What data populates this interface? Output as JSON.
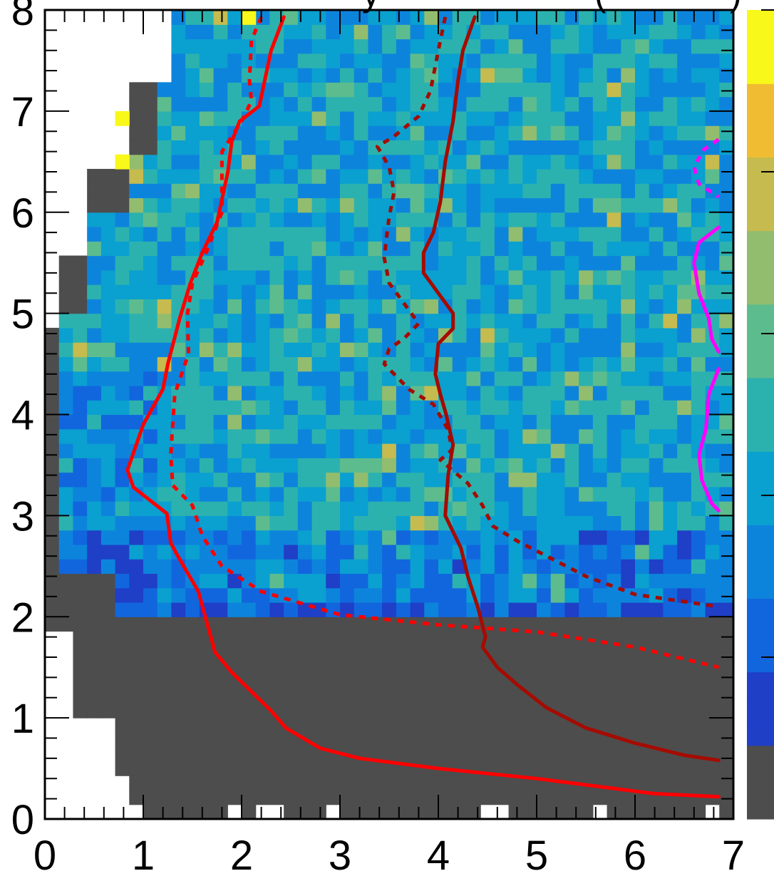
{
  "chart_data": {
    "type": "heatmap",
    "title_fragment": "y",
    "title_fragment_right": "(",
    "title_fragment_end": ")",
    "xlim": [
      0,
      7
    ],
    "ylim": [
      0,
      8
    ],
    "x_ticks": [
      "0",
      "1",
      "2",
      "3",
      "4",
      "5",
      "6",
      "7"
    ],
    "y_ticks": [
      "0",
      "1",
      "2",
      "3",
      "4",
      "5",
      "6",
      "7",
      "8"
    ],
    "grid": false,
    "bins": {
      "nx": 49,
      "ny": 56
    },
    "empty_bin_color": "#4d4d4d",
    "palette": [
      "#1f3fc7",
      "#1166dd",
      "#0d84dc",
      "#0aa0d0",
      "#2cb2ae",
      "#5dbc8e",
      "#93bd6e",
      "#c6bb4e",
      "#f0bd32",
      "#f8f81a"
    ],
    "colorbar": {
      "position": "right",
      "ticks_shown": 5
    },
    "contours": [
      {
        "style": "solid",
        "color": "#ff0000",
        "points": [
          [
            2.43,
            7.93
          ],
          [
            2.3,
            7.6
          ],
          [
            2.18,
            7.05
          ],
          [
            1.98,
            6.9
          ],
          [
            1.9,
            6.7
          ],
          [
            1.86,
            6.4
          ],
          [
            1.75,
            5.9
          ],
          [
            1.6,
            5.6
          ],
          [
            1.48,
            5.3
          ],
          [
            1.37,
            4.95
          ],
          [
            1.25,
            4.5
          ],
          [
            1.2,
            4.25
          ],
          [
            1.0,
            3.9
          ],
          [
            0.84,
            3.45
          ],
          [
            0.9,
            3.28
          ],
          [
            1.24,
            3.02
          ],
          [
            1.28,
            2.73
          ],
          [
            1.34,
            2.62
          ],
          [
            1.56,
            2.25
          ],
          [
            1.73,
            1.65
          ],
          [
            1.9,
            1.45
          ],
          [
            2.3,
            1.07
          ],
          [
            2.45,
            0.9
          ],
          [
            2.8,
            0.7
          ],
          [
            3.2,
            0.6
          ],
          [
            4.0,
            0.5
          ],
          [
            5.0,
            0.4
          ],
          [
            6.2,
            0.25
          ],
          [
            6.85,
            0.22
          ]
        ]
      },
      {
        "style": "dotted",
        "color": "#ff0000",
        "points": [
          [
            2.2,
            7.93
          ],
          [
            2.1,
            7.7
          ],
          [
            2.08,
            7.3
          ],
          [
            2.1,
            7.1
          ],
          [
            2.0,
            6.9
          ],
          [
            1.8,
            6.6
          ],
          [
            1.8,
            6.0
          ],
          [
            1.64,
            5.6
          ],
          [
            1.5,
            5.3
          ],
          [
            1.45,
            5.0
          ],
          [
            1.46,
            4.6
          ],
          [
            1.32,
            4.2
          ],
          [
            1.28,
            3.6
          ],
          [
            1.3,
            3.3
          ],
          [
            1.5,
            3.1
          ],
          [
            1.6,
            2.8
          ],
          [
            1.8,
            2.5
          ],
          [
            2.2,
            2.25
          ],
          [
            3.0,
            2.02
          ],
          [
            4.0,
            1.92
          ],
          [
            5.0,
            1.85
          ],
          [
            6.0,
            1.7
          ],
          [
            6.85,
            1.5
          ]
        ]
      },
      {
        "style": "solid",
        "color": "#a50b00",
        "points": [
          [
            4.37,
            7.93
          ],
          [
            4.25,
            7.6
          ],
          [
            4.2,
            7.3
          ],
          [
            4.15,
            6.9
          ],
          [
            4.07,
            6.5
          ],
          [
            4.02,
            6.1
          ],
          [
            3.95,
            5.8
          ],
          [
            3.85,
            5.6
          ],
          [
            3.85,
            5.4
          ],
          [
            4.0,
            5.2
          ],
          [
            4.15,
            5.0
          ],
          [
            4.15,
            4.85
          ],
          [
            4.0,
            4.7
          ],
          [
            3.97,
            4.4
          ],
          [
            4.02,
            4.2
          ],
          [
            4.08,
            4.0
          ],
          [
            4.15,
            3.7
          ],
          [
            4.1,
            3.4
          ],
          [
            4.07,
            3.0
          ],
          [
            4.23,
            2.68
          ],
          [
            4.3,
            2.4
          ],
          [
            4.4,
            2.1
          ],
          [
            4.48,
            1.8
          ],
          [
            4.45,
            1.7
          ],
          [
            4.6,
            1.5
          ],
          [
            4.8,
            1.33
          ],
          [
            5.1,
            1.1
          ],
          [
            5.5,
            0.9
          ],
          [
            6.0,
            0.75
          ],
          [
            6.5,
            0.63
          ],
          [
            6.85,
            0.58
          ]
        ]
      },
      {
        "style": "dotted",
        "color": "#a50b00",
        "points": [
          [
            4.07,
            7.93
          ],
          [
            4.0,
            7.6
          ],
          [
            3.92,
            7.2
          ],
          [
            3.8,
            6.95
          ],
          [
            3.55,
            6.75
          ],
          [
            3.38,
            6.65
          ],
          [
            3.5,
            6.45
          ],
          [
            3.55,
            6.2
          ],
          [
            3.5,
            5.95
          ],
          [
            3.48,
            5.8
          ],
          [
            3.45,
            5.55
          ],
          [
            3.5,
            5.3
          ],
          [
            3.65,
            5.1
          ],
          [
            3.8,
            4.9
          ],
          [
            3.65,
            4.75
          ],
          [
            3.5,
            4.65
          ],
          [
            3.45,
            4.5
          ],
          [
            3.7,
            4.25
          ],
          [
            3.95,
            4.1
          ],
          [
            4.1,
            3.85
          ],
          [
            4.14,
            3.65
          ],
          [
            4.02,
            3.55
          ],
          [
            4.3,
            3.32
          ],
          [
            4.45,
            3.1
          ],
          [
            4.55,
            2.9
          ],
          [
            4.8,
            2.75
          ],
          [
            5.2,
            2.55
          ],
          [
            5.5,
            2.4
          ],
          [
            6.0,
            2.22
          ],
          [
            6.85,
            2.1
          ]
        ]
      },
      {
        "style": "dotted",
        "color": "#ff00ff",
        "points": [
          [
            6.85,
            6.72
          ],
          [
            6.7,
            6.62
          ],
          [
            6.6,
            6.45
          ],
          [
            6.65,
            6.28
          ],
          [
            6.85,
            6.15
          ]
        ]
      },
      {
        "style": "solid",
        "color": "#ff00ff",
        "points": [
          [
            6.85,
            5.85
          ],
          [
            6.65,
            5.7
          ],
          [
            6.6,
            5.5
          ],
          [
            6.65,
            5.2
          ],
          [
            6.75,
            4.95
          ],
          [
            6.78,
            4.75
          ],
          [
            6.85,
            4.62
          ]
        ]
      },
      {
        "style": "solid",
        "color": "#ff00ff",
        "points": [
          [
            6.85,
            4.45
          ],
          [
            6.75,
            4.2
          ],
          [
            6.72,
            3.85
          ],
          [
            6.65,
            3.6
          ],
          [
            6.68,
            3.35
          ],
          [
            6.78,
            3.12
          ],
          [
            6.85,
            3.05
          ]
        ]
      }
    ]
  }
}
